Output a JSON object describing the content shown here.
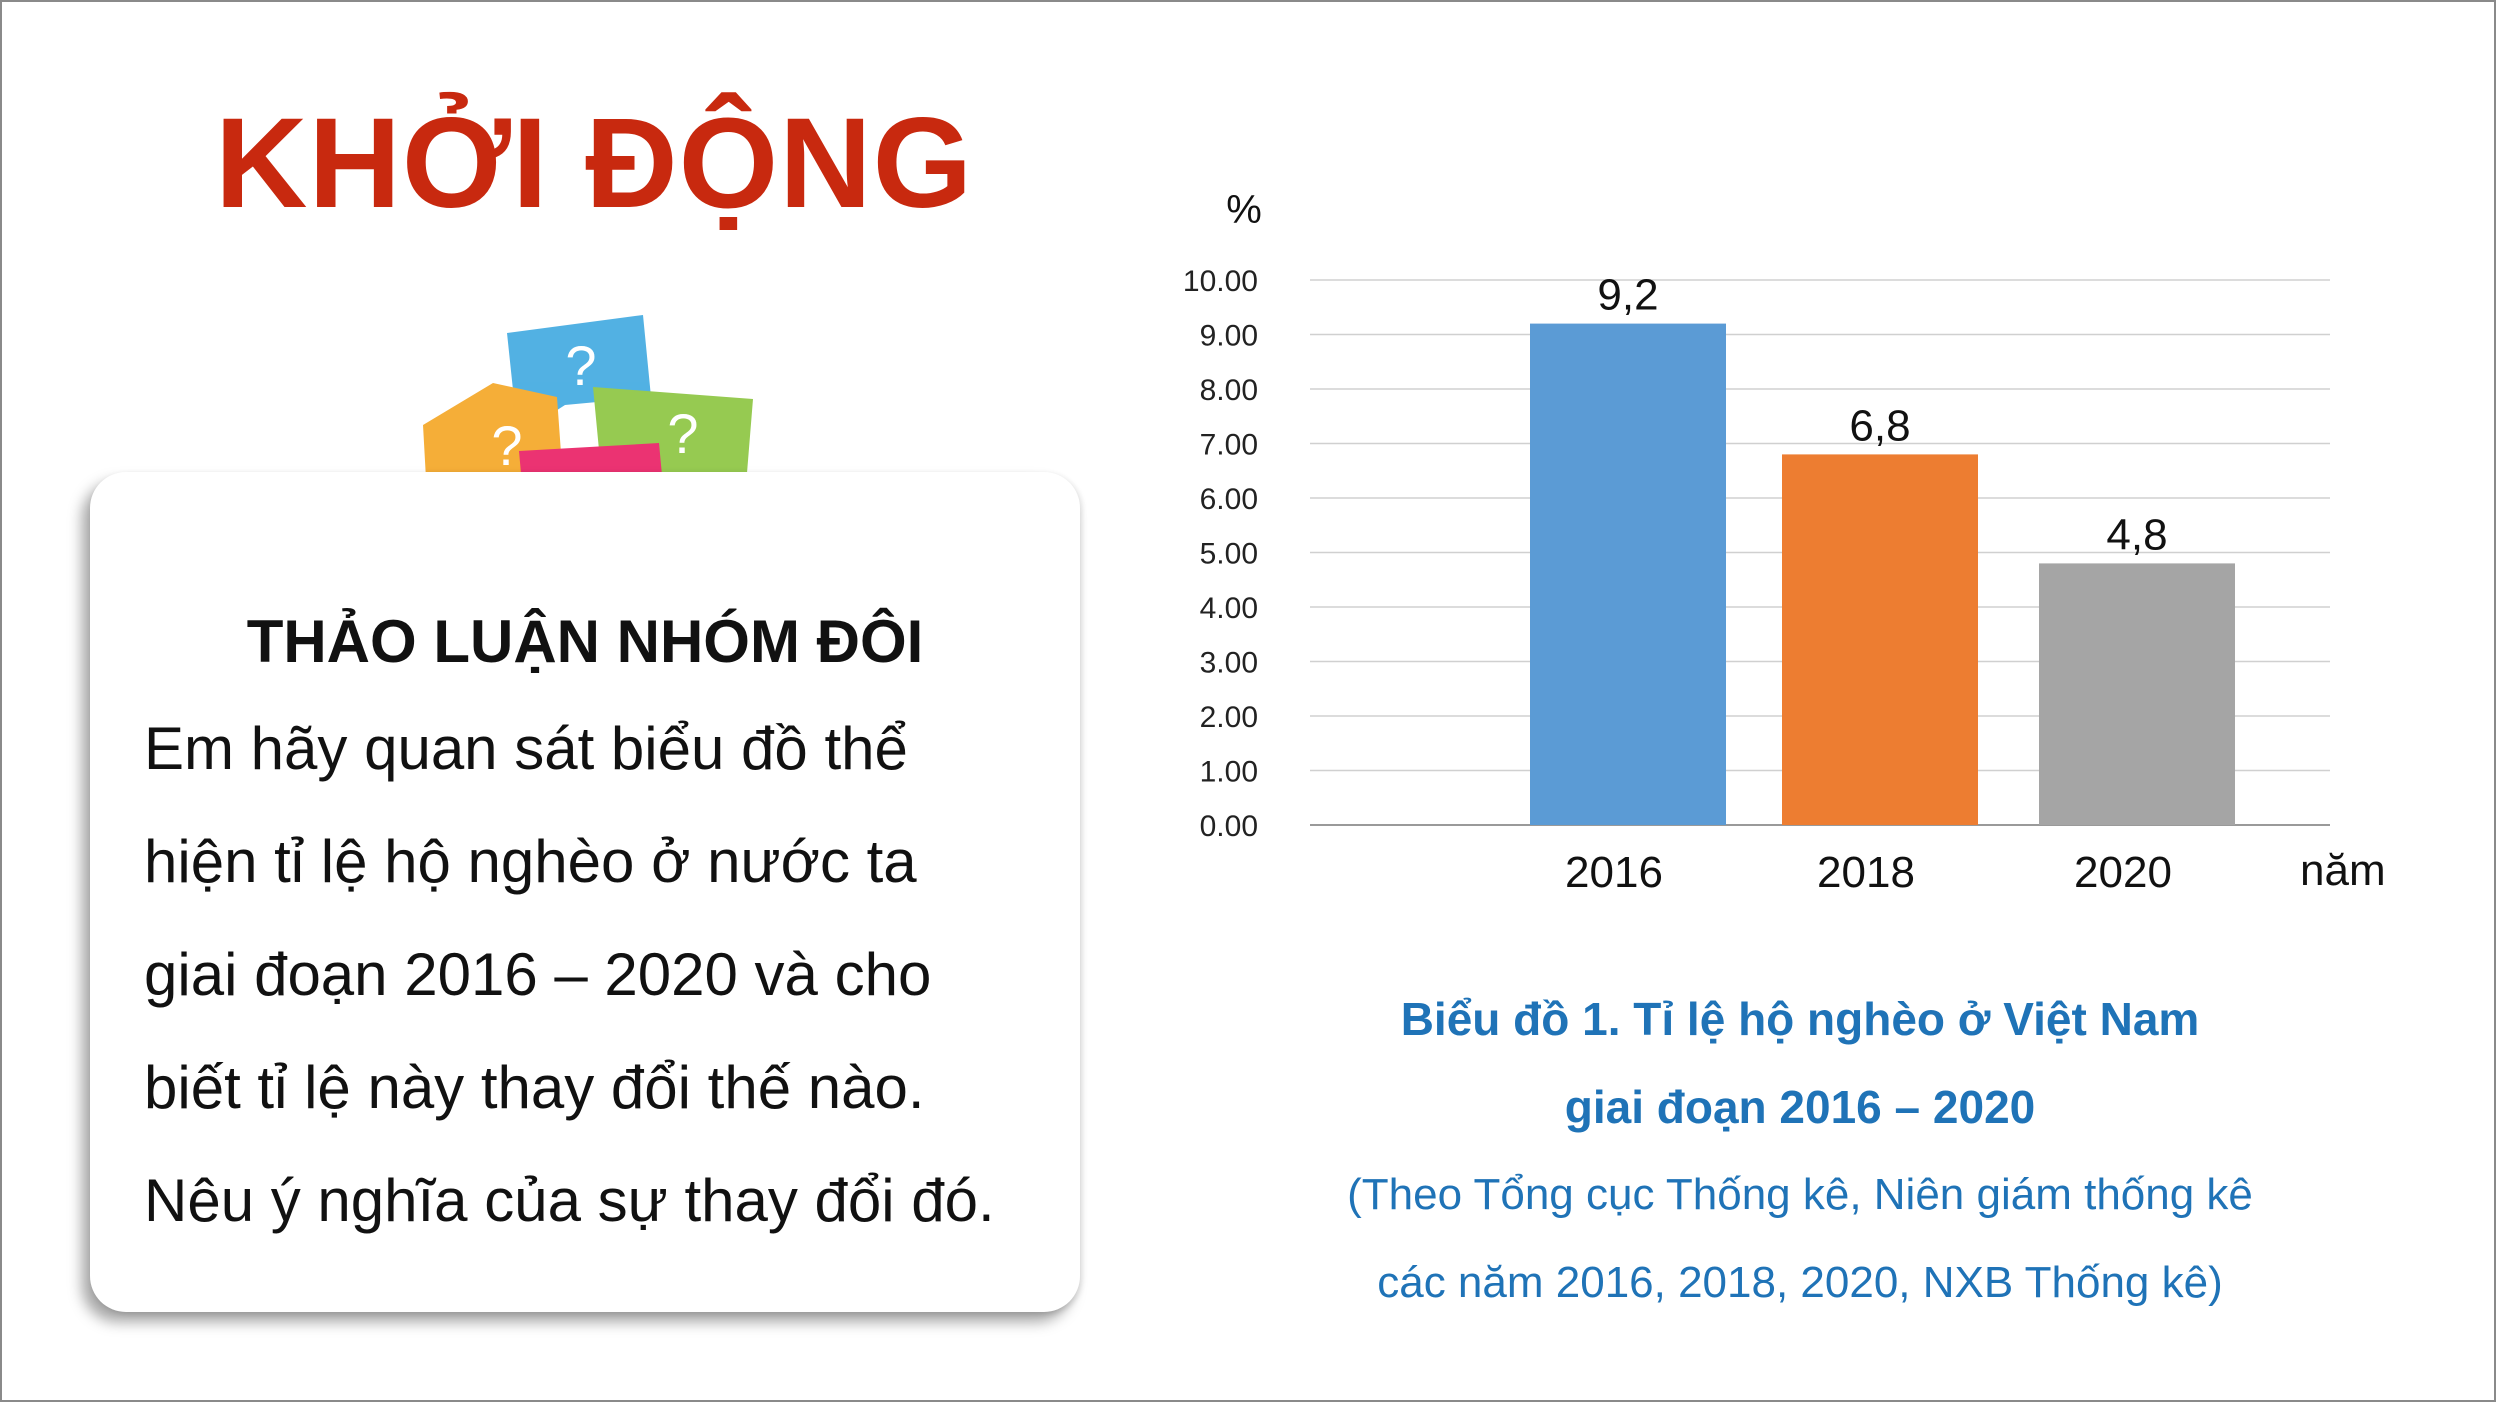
{
  "slide": {
    "title": "KHỞI ĐỘNG",
    "card": {
      "heading": "THẢO LUẬN NHÓM ĐÔI",
      "lines": [
        "Em hãy quan sát biểu đồ thể",
        "hiện tỉ lệ hộ nghèo ở nước ta",
        "giai đoạn 2016 – 2020 và cho",
        "biết tỉ lệ này thay đổi thế nào.",
        "Nêu ý nghĩa của sự thay đổi đó."
      ]
    },
    "bubbles": {
      "glyph": "?",
      "colors": [
        "#3fa9e0",
        "#f5a623",
        "#8bc53f",
        "#e91e63"
      ]
    },
    "caption": {
      "title_line1": "Biểu đồ 1. Tỉ lệ hộ nghèo ở Việt Nam",
      "title_line2": "giai đoạn 2016 – 2020",
      "source_line1": "(Theo Tổng cục Thống kê, Niên giám thống kê",
      "source_line2": "các năm 2016, 2018, 2020, NXB Thống kê)"
    }
  },
  "chart_data": {
    "type": "bar",
    "categories": [
      "2016",
      "2018",
      "2020"
    ],
    "values": [
      9.2,
      6.8,
      4.8
    ],
    "data_labels": [
      "9,2",
      "6,8",
      "4,8"
    ],
    "bar_colors": [
      "#5b9bd5",
      "#ed7d31",
      "#a5a5a5"
    ],
    "ylabel": "%",
    "xlabel": "năm",
    "ylim": [
      0,
      10
    ],
    "yticks": [
      "0.00",
      "1.00",
      "2.00",
      "3.00",
      "4.00",
      "5.00",
      "6.00",
      "7.00",
      "8.00",
      "9.00",
      "10.00"
    ],
    "grid": true
  }
}
